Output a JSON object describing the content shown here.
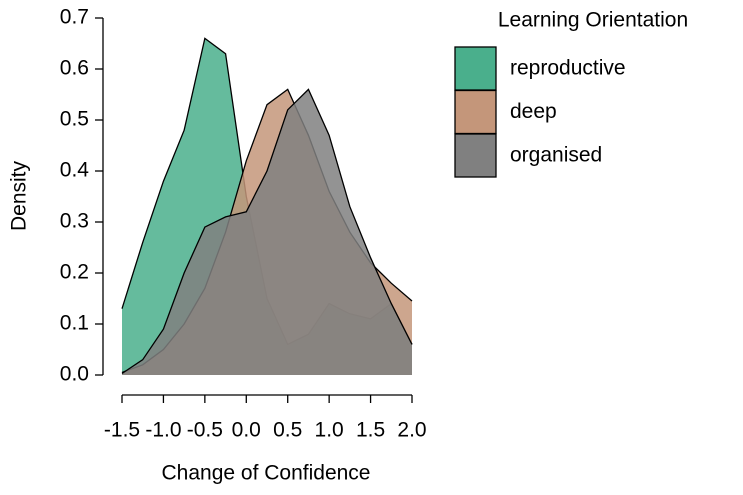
{
  "chart_data": {
    "type": "area",
    "xlabel": "Change of Confidence",
    "ylabel": "Density",
    "legend_title": "Learning Orientation",
    "legend_position": "right",
    "x": [
      -1.5,
      -1.25,
      -1.0,
      -0.75,
      -0.5,
      -0.25,
      0.0,
      0.25,
      0.5,
      0.75,
      1.0,
      1.25,
      1.5,
      1.75,
      2.0
    ],
    "series": [
      {
        "name": "reproductive",
        "color": "#4aaf8c",
        "values": [
          0.13,
          0.26,
          0.38,
          0.48,
          0.66,
          0.63,
          0.35,
          0.15,
          0.06,
          0.08,
          0.14,
          0.12,
          0.11,
          0.14,
          0.06
        ]
      },
      {
        "name": "deep",
        "color": "#c4967a",
        "values": [
          0.005,
          0.02,
          0.05,
          0.1,
          0.17,
          0.28,
          0.42,
          0.53,
          0.56,
          0.47,
          0.36,
          0.28,
          0.22,
          0.18,
          0.145
        ]
      },
      {
        "name": "organised",
        "color": "#808080",
        "values": [
          0.003,
          0.03,
          0.09,
          0.2,
          0.29,
          0.31,
          0.32,
          0.4,
          0.52,
          0.56,
          0.47,
          0.33,
          0.23,
          0.14,
          0.06
        ]
      }
    ],
    "xlim": [
      -1.5,
      2.0
    ],
    "xticks": [
      -1.5,
      {
        "value": -1.0,
        "label": "-1.0"
      },
      -0.5,
      {
        "value": 0.0,
        "label": "0.0"
      },
      0.5,
      {
        "value": 1.0,
        "label": "1.0"
      },
      1.5,
      {
        "value": 2.0,
        "label": "2.0"
      }
    ],
    "ylim": [
      0,
      0.7
    ],
    "yticks": [
      {
        "value": 0.0,
        "label": "0.0"
      },
      0.1,
      0.2,
      0.3,
      0.4,
      0.5,
      0.6,
      0.7
    ]
  }
}
